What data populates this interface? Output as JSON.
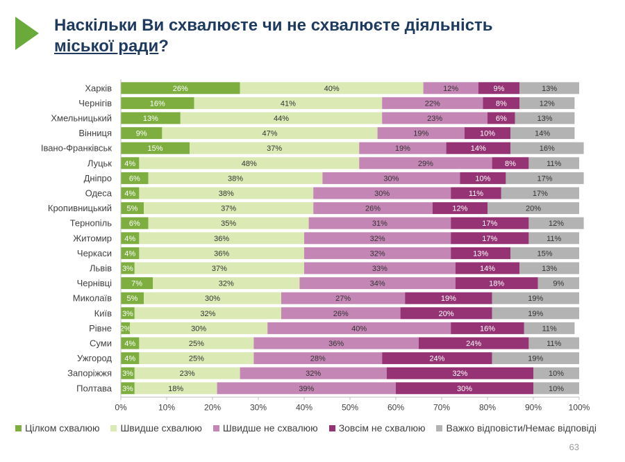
{
  "title": {
    "line1": "Наскільки Ви схвалюєте чи не схвалюєте діяльність",
    "line2_underlined": "міської ради",
    "line2_suffix": "?"
  },
  "page_number": "63",
  "colors": {
    "logo": "#6aaa3a",
    "title": "#1f3a5f"
  },
  "chart_data": {
    "type": "bar",
    "orientation": "horizontal",
    "stacked": "100%",
    "categories": [
      "Харків",
      "Чернігів",
      "Хмельницький",
      "Вінниця",
      "Івано-Франківськ",
      "Луцьк",
      "Дніпро",
      "Одеса",
      "Кропивницький",
      "Тернопіль",
      "Житомир",
      "Черкаси",
      "Львів",
      "Чернівці",
      "Миколаїв",
      "Київ",
      "Рівне",
      "Суми",
      "Ужгород",
      "Запоріжжя",
      "Полтава"
    ],
    "series": [
      {
        "name": "Цілком схвалюю",
        "color": "#7dae3f",
        "values": [
          26,
          16,
          13,
          9,
          15,
          4,
          6,
          4,
          5,
          6,
          4,
          4,
          3,
          7,
          5,
          3,
          2,
          4,
          4,
          3,
          3
        ]
      },
      {
        "name": "Швидше схвалюю",
        "color": "#dbe9b4",
        "values": [
          40,
          41,
          44,
          47,
          37,
          48,
          38,
          38,
          37,
          35,
          36,
          36,
          37,
          32,
          30,
          32,
          30,
          25,
          25,
          23,
          18
        ]
      },
      {
        "name": "Швидше не схвалюю",
        "color": "#c486b5",
        "values": [
          12,
          22,
          23,
          19,
          19,
          29,
          30,
          30,
          26,
          31,
          32,
          32,
          33,
          34,
          27,
          26,
          40,
          36,
          28,
          32,
          39
        ]
      },
      {
        "name": "Зовсім не схвалюю",
        "color": "#953374",
        "values": [
          9,
          8,
          6,
          10,
          14,
          8,
          10,
          11,
          12,
          17,
          17,
          13,
          14,
          18,
          19,
          20,
          16,
          24,
          24,
          32,
          30
        ]
      },
      {
        "name": "Важко відповісти/Немає відповіді",
        "color": "#b3b3b3",
        "values": [
          13,
          12,
          13,
          14,
          16,
          11,
          17,
          17,
          20,
          12,
          11,
          15,
          13,
          9,
          19,
          19,
          11,
          11,
          19,
          10,
          10
        ]
      }
    ],
    "x_ticks": [
      "0%",
      "10%",
      "20%",
      "30%",
      "40%",
      "50%",
      "60%",
      "70%",
      "80%",
      "90%",
      "100%"
    ],
    "xlim": [
      0,
      100
    ],
    "value_suffix": "%",
    "grid": false,
    "legend_position": "bottom"
  }
}
